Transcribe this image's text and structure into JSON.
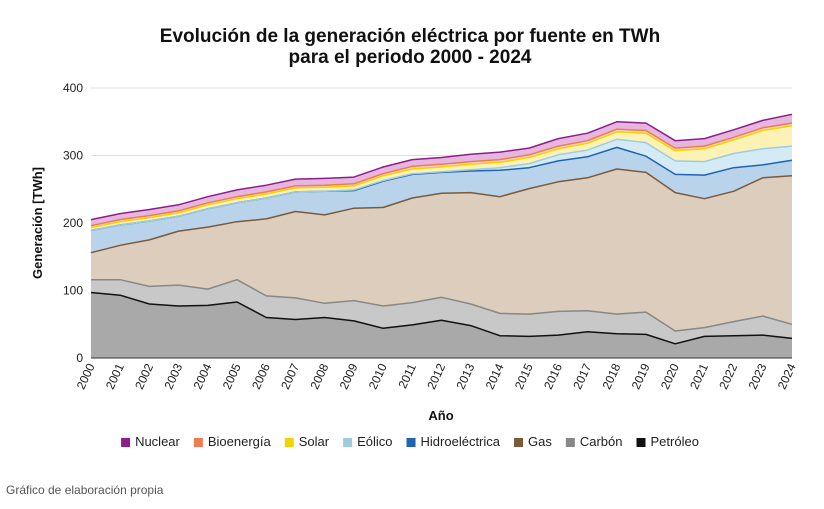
{
  "source_note": "Gráfico de elaboración propia",
  "chart_data": {
    "type": "area",
    "stacked": true,
    "title": "Evolución de la generación eléctrica por fuente en TWh",
    "subtitle": "para el periodo 2000 - 2024",
    "xlabel": "Año",
    "ylabel": "Generación [TWh]",
    "ylim": [
      0,
      400
    ],
    "yticks": [
      0,
      100,
      200,
      300,
      400
    ],
    "grid": true,
    "legend_position": "bottom",
    "x": [
      "2000",
      "2001",
      "2002",
      "2003",
      "2004",
      "2005",
      "2006",
      "2007",
      "2008",
      "2009",
      "2010",
      "2011",
      "2012",
      "2013",
      "2014",
      "2015",
      "2016",
      "2017",
      "2018",
      "2019",
      "2020",
      "2021",
      "2022",
      "2023",
      "2024"
    ],
    "series": [
      {
        "name": "Petróleo",
        "fill": "#a9a9a9",
        "stroke": "#111111",
        "values": [
          97,
          93,
          80,
          77,
          78,
          83,
          60,
          57,
          60,
          55,
          44,
          49,
          56,
          48,
          33,
          32,
          34,
          39,
          36,
          35,
          21,
          32,
          33,
          34,
          29
        ]
      },
      {
        "name": "Carbón",
        "fill": "#c8c8c8",
        "stroke": "#888888",
        "values": [
          19,
          23,
          26,
          31,
          24,
          33,
          32,
          32,
          21,
          30,
          33,
          33,
          34,
          32,
          33,
          33,
          35,
          31,
          29,
          33,
          19,
          13,
          21,
          28,
          21
        ]
      },
      {
        "name": "Gas",
        "fill": "#dccdbd",
        "stroke": "#7b5a3c",
        "values": [
          40,
          51,
          69,
          80,
          92,
          86,
          114,
          128,
          131,
          137,
          146,
          155,
          154,
          165,
          173,
          186,
          192,
          197,
          215,
          207,
          205,
          191,
          193,
          205,
          220
        ]
      },
      {
        "name": "Hidroeléctrica",
        "fill": "#b8d3ea",
        "stroke": "#1f63b5",
        "values": [
          33,
          30,
          28,
          22,
          27,
          28,
          31,
          29,
          35,
          26,
          39,
          35,
          31,
          32,
          39,
          31,
          31,
          31,
          32,
          24,
          27,
          35,
          35,
          19,
          23
        ]
      },
      {
        "name": "Eólico",
        "fill": "#d4ebf5",
        "stroke": "#9dcce0",
        "values": [
          0,
          0,
          0,
          0,
          0,
          0,
          0,
          0,
          0,
          1,
          1,
          1,
          1,
          2,
          4,
          6,
          9,
          10,
          12,
          20,
          20,
          20,
          21,
          24,
          21
        ]
      },
      {
        "name": "Solar",
        "fill": "#fdf2b6",
        "stroke": "#f2d400",
        "values": [
          4,
          5,
          5,
          5,
          6,
          6,
          6,
          6,
          6,
          6,
          7,
          7,
          7,
          8,
          8,
          9,
          9,
          10,
          11,
          14,
          15,
          19,
          20,
          27,
          30
        ]
      },
      {
        "name": "Bioenergía",
        "fill": "#f9d3c3",
        "stroke": "#f07a52",
        "values": [
          3,
          3,
          3,
          3,
          3,
          3,
          3,
          3,
          3,
          3,
          3,
          4,
          4,
          4,
          4,
          4,
          4,
          4,
          4,
          4,
          4,
          4,
          4,
          4,
          4
        ]
      },
      {
        "name": "Nuclear",
        "fill": "#e6b6de",
        "stroke": "#8c1f8c",
        "values": [
          9,
          9,
          9,
          9,
          9,
          10,
          10,
          10,
          10,
          10,
          10,
          10,
          10,
          11,
          11,
          10,
          11,
          11,
          11,
          11,
          11,
          11,
          11,
          11,
          13
        ]
      }
    ],
    "legend_order": [
      "Nuclear",
      "Bioenergía",
      "Solar",
      "Eólico",
      "Hidroeléctrica",
      "Gas",
      "Carbón",
      "Petróleo"
    ]
  }
}
